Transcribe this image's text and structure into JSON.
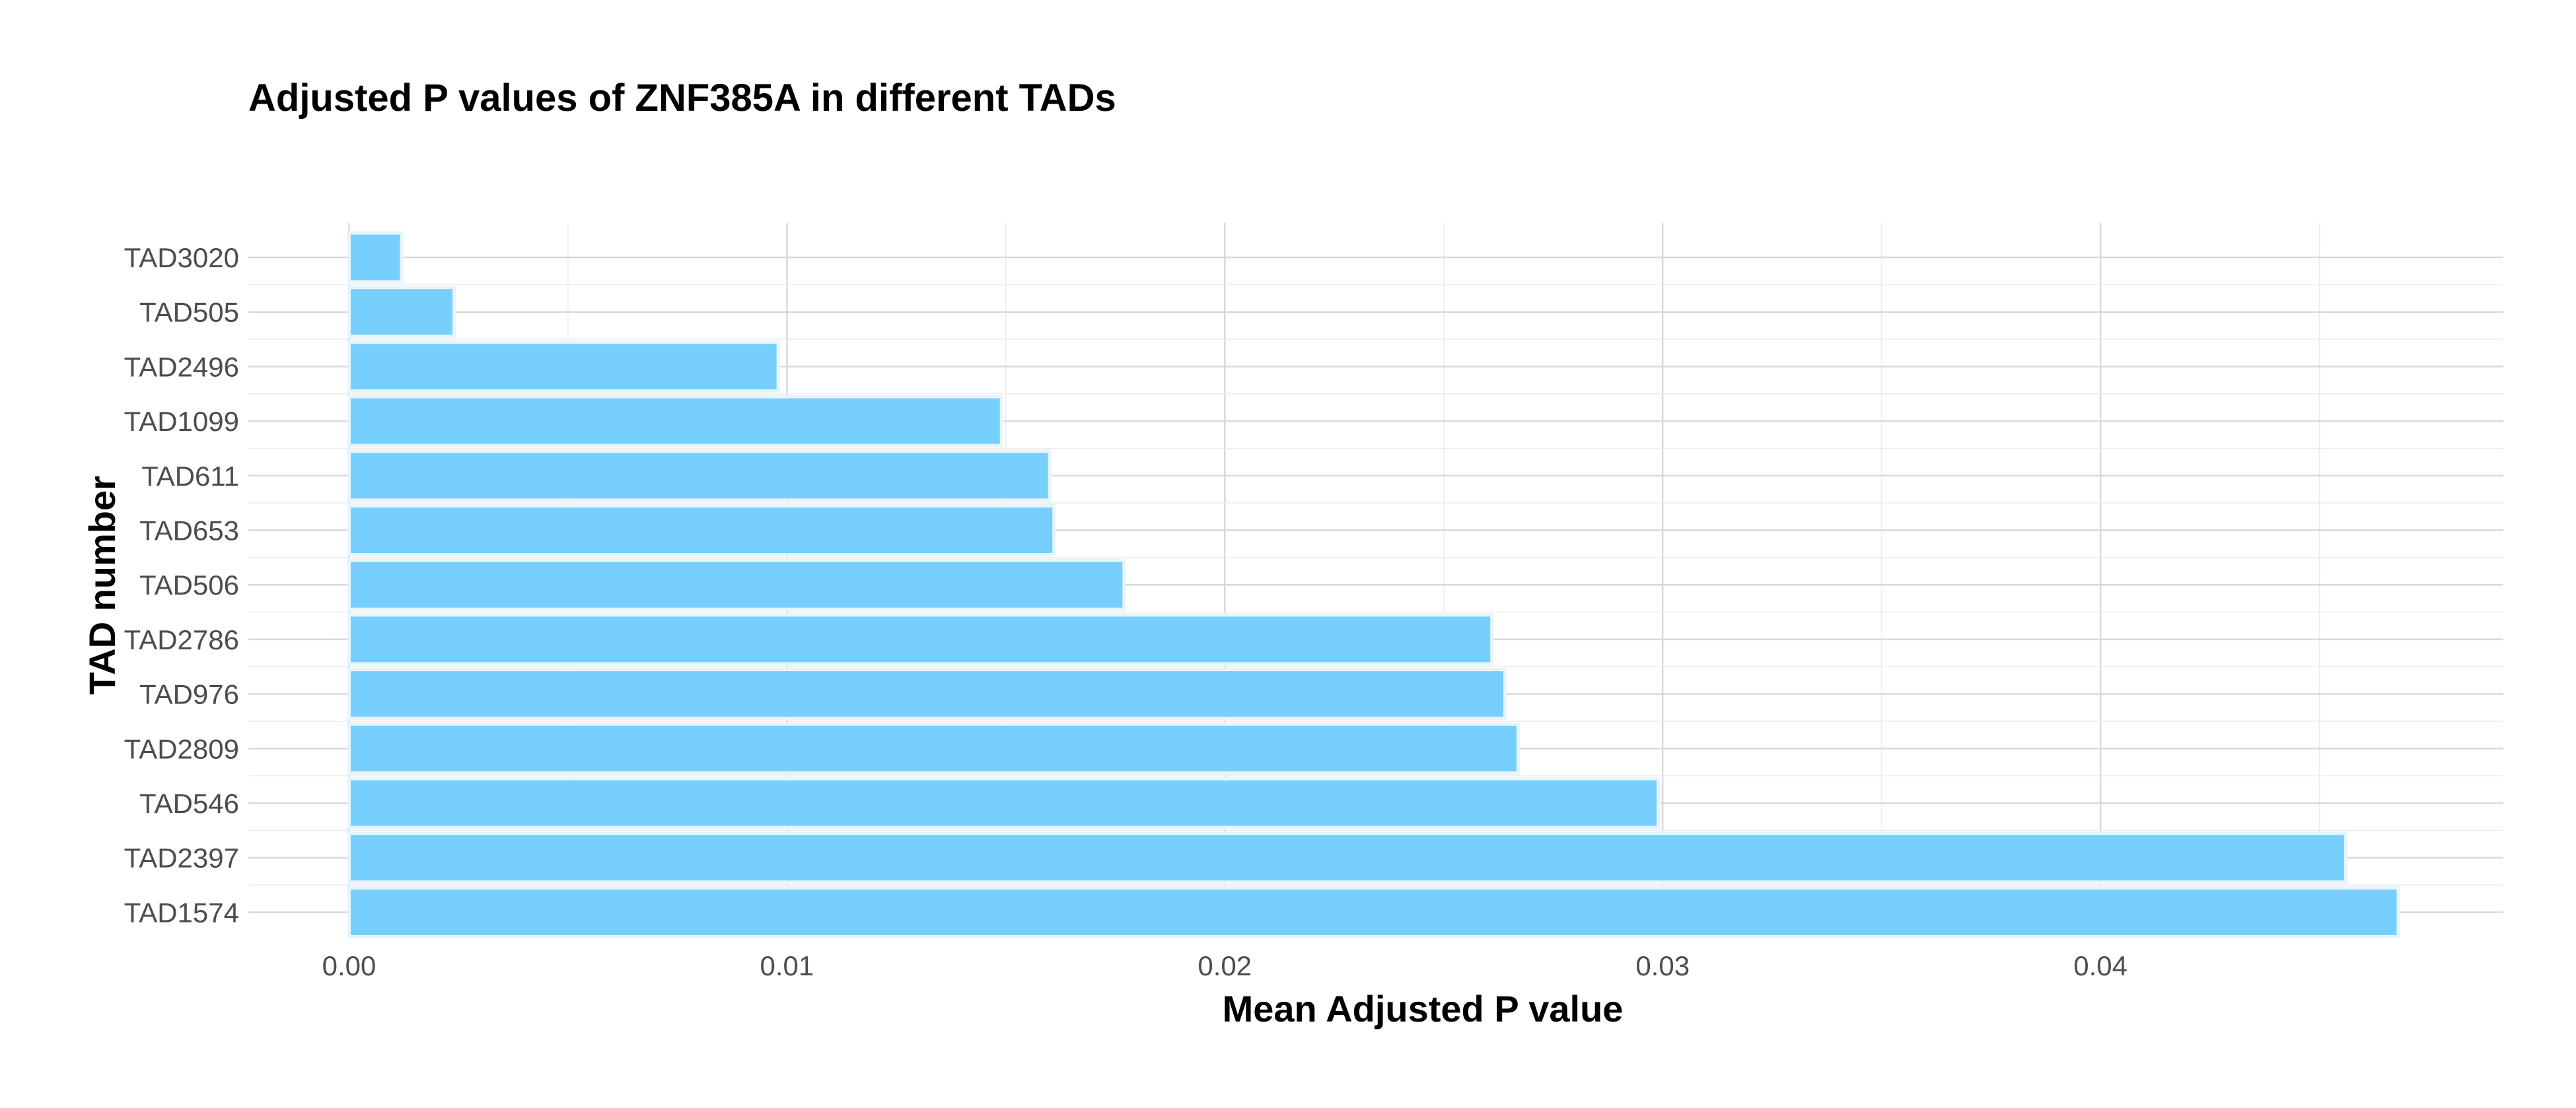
{
  "chart_data": {
    "type": "bar",
    "orientation": "horizontal",
    "title": "Adjusted P values of ZNF385A in different TADs",
    "xlabel": "Mean Adjusted P value",
    "ylabel": "TAD number",
    "categories": [
      "TAD3020",
      "TAD505",
      "TAD2496",
      "TAD1099",
      "TAD611",
      "TAD653",
      "TAD506",
      "TAD2786",
      "TAD976",
      "TAD2809",
      "TAD546",
      "TAD2397",
      "TAD1574"
    ],
    "values": [
      0.0012,
      0.0024,
      0.0098,
      0.0149,
      0.016,
      0.0161,
      0.0177,
      0.0261,
      0.0264,
      0.0267,
      0.0299,
      0.0456,
      0.0468
    ],
    "xlim": [
      -0.0023,
      0.0492
    ],
    "x_ticks": [
      0.0,
      0.01,
      0.02,
      0.03,
      0.04
    ],
    "x_tick_labels": [
      "0.00",
      "0.01",
      "0.02",
      "0.03",
      "0.04"
    ],
    "grid": true,
    "legend": "none",
    "bar_color": "#76cffd"
  }
}
